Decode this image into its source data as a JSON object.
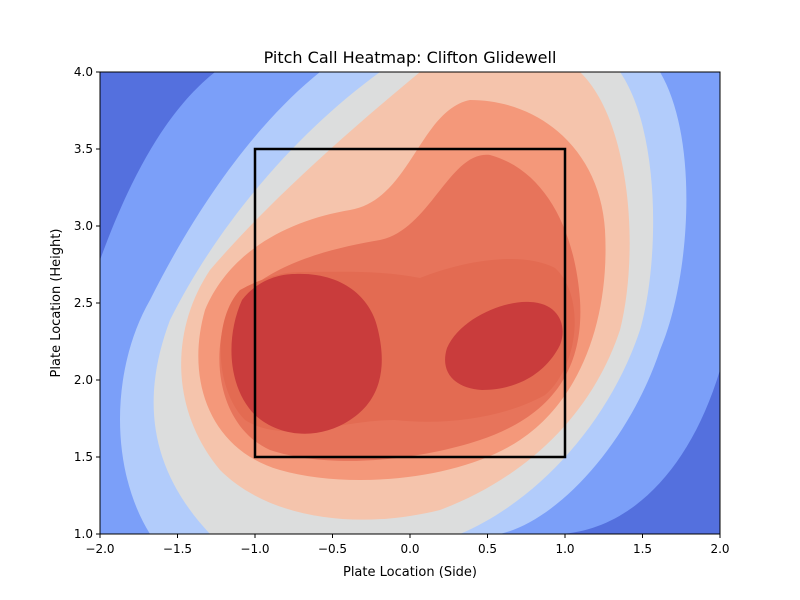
{
  "chart_data": {
    "type": "heatmap",
    "title": "Pitch Call Heatmap: Clifton Glidewell",
    "xlabel": "Plate Location (Side)",
    "ylabel": "Plate Location (Height)",
    "xlim": [
      -2.0,
      2.0
    ],
    "ylim": [
      1.0,
      4.0
    ],
    "x_ticks": [
      "−2.0",
      "−1.5",
      "−1.0",
      "−0.5",
      "0.0",
      "0.5",
      "1.0",
      "1.5",
      "2.0"
    ],
    "y_ticks": [
      "1.0",
      "1.5",
      "2.0",
      "2.5",
      "3.0",
      "3.5",
      "4.0"
    ],
    "colormap": "coolwarm",
    "level_colors": [
      "#3b4cc0",
      "#5470de",
      "#7b9ff9",
      "#b2ccfb",
      "#dcdddd",
      "#f5c4ac",
      "#f4987a",
      "#e7745b",
      "#e36b52",
      "#c93c3c"
    ],
    "density_peaks": [
      {
        "x": -0.7,
        "y": 2.2,
        "level": "max"
      },
      {
        "x": 0.6,
        "y": 2.2,
        "level": "max"
      }
    ],
    "strike_zone": {
      "x": [
        -1.0,
        1.0
      ],
      "y": [
        1.5,
        3.5
      ]
    },
    "grid": false,
    "legend": "none"
  }
}
